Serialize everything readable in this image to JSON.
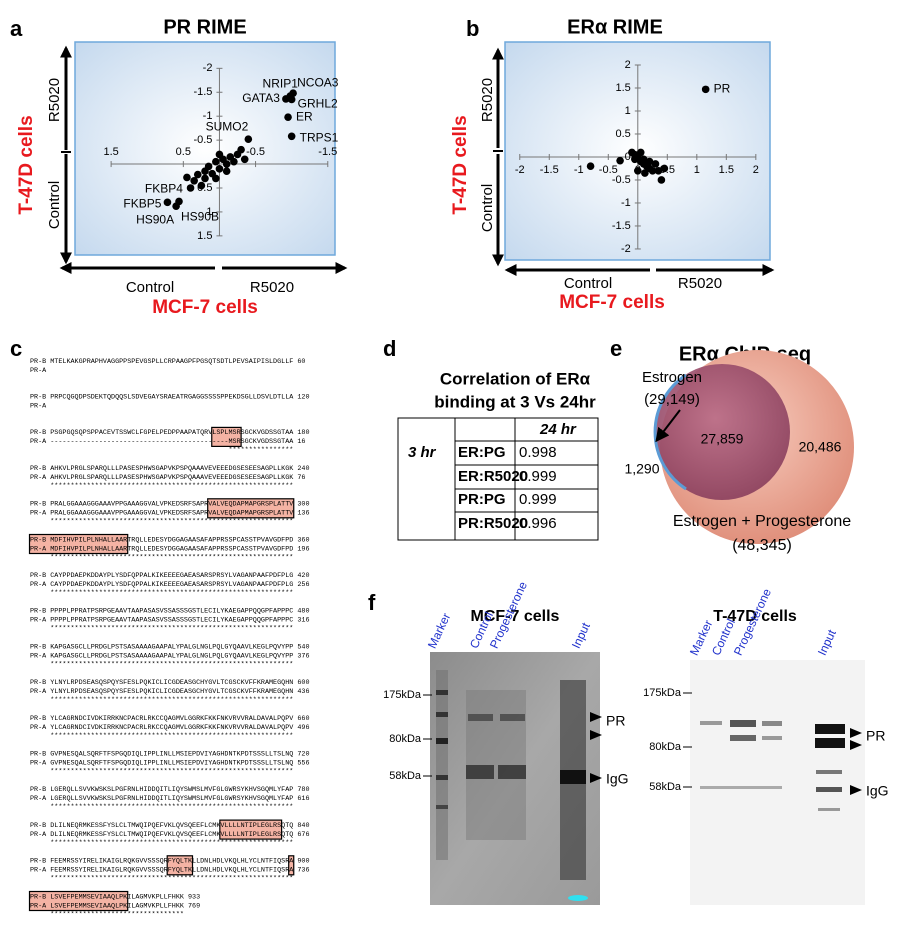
{
  "panel_labels": [
    "a",
    "b",
    "c",
    "d",
    "e",
    "f"
  ],
  "chart_data": [
    {
      "type": "scatter",
      "title": "PR RIME",
      "x_label": "MCF-7 cells",
      "x_side_labels": [
        "Control",
        "R5020"
      ],
      "y_label": "T-47D cells",
      "y_side_labels": [
        "R5020",
        "Control"
      ],
      "xlim": [
        2.0,
        -1.6
      ],
      "ylim": [
        1.9,
        -2.55
      ],
      "xticks": [
        1.5,
        0.5,
        -0.5,
        -1.5
      ],
      "yticks": [
        -2,
        -1.5,
        -1,
        -0.5,
        0.5,
        1,
        1.5
      ],
      "series": [
        {
          "color": "#000000",
          "x": [
            -0.98,
            -1.02,
            -0.92,
            -1.0,
            -0.95,
            -1.0,
            -0.4,
            0.45,
            0.72,
            0.6,
            0.56,
            0.35,
            0.3,
            0.25,
            0.2,
            0.15,
            0.1,
            0.05,
            0,
            -0.05,
            -0.1,
            -0.15,
            -0.2,
            -0.25,
            -0.3,
            -0.1,
            0.05,
            -0.35,
            0.4,
            0.2,
            0
          ],
          "values": [
            -1.42,
            -1.48,
            -1.36,
            -1.35,
            -0.98,
            -0.58,
            -0.52,
            0.28,
            0.8,
            0.88,
            0.78,
            0.35,
            0.22,
            0.45,
            0.15,
            0.05,
            0.2,
            -0.05,
            0.1,
            -0.1,
            0,
            -0.15,
            -0.05,
            -0.2,
            -0.3,
            0.15,
            0.3,
            -0.1,
            0.5,
            0.3,
            -0.2
          ],
          "labels": [
            "NRIP1",
            "NCOA3",
            "GATA3",
            "GRHL2",
            "ER",
            "TRPS1",
            "SUMO2",
            "FKBP4",
            "FKBP5",
            "HS90A",
            "HS90B",
            null,
            null,
            null,
            null,
            null,
            null,
            null,
            null,
            null,
            null,
            null,
            null,
            null,
            null,
            null,
            null,
            null,
            null,
            null,
            null
          ]
        }
      ]
    },
    {
      "type": "scatter",
      "title": "ERα RIME",
      "x_label": "MCF-7 cells",
      "x_side_labels": [
        "Control",
        "R5020"
      ],
      "y_label": "T-47D cells",
      "y_side_labels": [
        "R5020",
        "Control"
      ],
      "xlim": [
        -2.25,
        2.24
      ],
      "ylim": [
        -2.24,
        2.5
      ],
      "xticks": [
        -2,
        -1.5,
        -1,
        -0.5,
        0,
        0.5,
        1,
        1.5,
        2
      ],
      "yticks": [
        2,
        1.5,
        1,
        0.5,
        0,
        -0.5,
        -1,
        -1.5,
        -2
      ],
      "series": [
        {
          "color": "#000000",
          "x": [
            1.15,
            0,
            0.05,
            0.1,
            -0.05,
            0.15,
            0.2,
            0.25,
            0.3,
            0.35,
            0.4,
            -0.1,
            0,
            0.1,
            0.05,
            -0.05,
            0.2,
            0.45,
            -0.3,
            -0.8,
            0.12
          ],
          "values": [
            1.47,
            0,
            -0.1,
            -0.15,
            0.05,
            -0.2,
            -0.25,
            -0.3,
            -0.15,
            -0.3,
            -0.5,
            0.1,
            -0.3,
            -0.05,
            0.1,
            -0.05,
            -0.1,
            -0.25,
            -0.08,
            -0.2,
            -0.35
          ],
          "labels": [
            "PR",
            null,
            null,
            null,
            null,
            null,
            null,
            null,
            null,
            null,
            null,
            null,
            null,
            null,
            null,
            null,
            null,
            null,
            null,
            null,
            null
          ]
        }
      ]
    }
  ],
  "alignment": {
    "blocks": [
      {
        "pr_b": "PR-B MTELKAKGPRAPHVAGGPPSPEVGSPLLCRPAAGPFPGSQTSDTLPEVSAIPISLDGLLF 60",
        "pr_a": "PR-A"
      },
      {
        "pr_b": "PR-B PRPCQGQDPSDEKTQDQQSLSDVEGAYSRAEATRGAGGSSSSPPEKDSGLLDSVLDTLLA 120",
        "pr_a": "PR-A"
      },
      {
        "pr_b": "PR-B PSGPGQSQPSPPACEVTSSWCLFGPELPEDPPAAPATQRVLSPLMSRSGCKVGDSSGTAA 180",
        "pr_a": "PR-A --------------------------------------------MSRSGCKVGDSSGTAA 16",
        "match": "                                            ****************"
      },
      {
        "pr_b": "PR-B AHKVLPRGLSPARQLLLPASESPHWSGAPVKPSPQAAAVEVEEEDGSESEESAGPLLKGK 240",
        "pr_a": "PR-A AHKVLPRGLSPARQLLLPASESPHWSGAPVKPSPQAAAVEVEEEDGSESEESAGPLLKGK 76",
        "match": "************************************************************"
      },
      {
        "pr_b": "PR-B PRALGGAAAGGGAAAVPPGAAAGGVALVPKEDSRFSAPRVALVEQDAPMAPGRSPLATTV 300",
        "pr_a": "PR-A PRALGGAAAGGGAAAVPPGAAAGGVALVPKEDSRFSAPRVALVEQDAPMAPGRSPLATTV 136",
        "match": "************************************************************"
      },
      {
        "pr_b": "PR-B MDFIHVPILPLNHALLAARTRQLLEDESYDGGAGAASAFAPPRSSPCASSTPVAVGDFPD 360",
        "pr_a": "PR-A MDFIHVPILPLNHALLAARTRQLLEDESYDGGAGAASAFAPPRSSPCASSTPVAVGDFPD 196",
        "match": "************************************************************"
      },
      {
        "pr_b": "PR-B CAYPPDAEPKDDAYPLYSDFQPPALKIKEEEEGAEASARSPRSYLVAGANPAAFPDFPLG 420",
        "pr_a": "PR-A CAYPPDAEPKDDAYPLYSDFQPPALKIKEEEEGAEASARSPRSYLVAGANPAAFPDFPLG 256",
        "match": "************************************************************"
      },
      {
        "pr_b": "PR-B PPPPLPPRATPSRPGEAAVTAAPASASVSSASSSGSTLECILYKAEGAPPQQGPFAPPPC 480",
        "pr_a": "PR-A PPPPLPPRATPSRPGEAAVTAAPASASVSSASSSGSTLECILYKAEGAPPQQGPFAPPPC 316",
        "match": "************************************************************"
      },
      {
        "pr_b": "PR-B KAPGASGCLLPRDGLPSTSASAAAAGAAPALYPALGLNGLPQLGYQAAVLKEGLPQVYPP 540",
        "pr_a": "PR-A KAPGASGCLLPRDGLPSTSASAAAAGAAPALYPALGLNGLPQLGYQAAVLKEGLPQVYPP 376",
        "match": "************************************************************"
      },
      {
        "pr_b": "PR-B YLNYLRPDSEASQSPQYSFESLPQKICLICGDEASGCHYGVLTCGSCKVFFKRAMEGQHN 600",
        "pr_a": "PR-A YLNYLRPDSEASQSPQYSFESLPQKICLICGDEASGCHYGVLTCGSCKVFFKRAMEGQHN 436",
        "match": "************************************************************"
      },
      {
        "pr_b": "PR-B YLCAGRNDCIVDKIRRKNCPACRLRKCCQAGMVLGGRKFKKFNKVRVVRALDAVALPQPV 660",
        "pr_a": "PR-A YLCAGRNDCIVDKIRRKNCPACRLRKCCQAGMVLGGRKFKKFNKVRVVRALDAVALPQPV 496",
        "match": "************************************************************"
      },
      {
        "pr_b": "PR-B GVPNESQALSQRFTFSPGQDIQLIPPLINLLMSIEPDVIYAGHDNTKPDTSSSLLTSLNQ 720",
        "pr_a": "PR-A GVPNESQALSQRFTFSPGQDIQLIPPLINLLMSIEPDVIYAGHDNTKPDTSSSLLTSLNQ 556",
        "match": "************************************************************"
      },
      {
        "pr_b": "PR-B LGERQLLSVVKWSKSLPGFRNLHIDDQITLIQYSWMSLMVFGLGWRSYKHVSGQMLYFAP 780",
        "pr_a": "PR-A LGERQLLSVVKWSKSLPGFRNLHIDDQITLIQYSWMSLMVFGLGWRSYKHVSGQMLYFAP 616",
        "match": "************************************************************"
      },
      {
        "pr_b": "PR-B DLILNEQRMKESSFYSLCLTMWQIPQEFVKLQVSQEEFLCMKVLLLLNTIPLEGLRSQTQ 840",
        "pr_a": "PR-A DLILNEQRMKESSFYSLCLTMWQIPQEFVKLQVSQEEFLCMKVLLLLNTIPLEGLRSQTQ 676",
        "match": "************************************************************"
      },
      {
        "pr_b": "PR-B FEEMRSSYIRELIKAIGLRQKGVVSSSQRFYQLTKLLDNLHDLVKQLHLYCLNTFIQSRA 900",
        "pr_a": "PR-A FEEMRSSYIRELIKAIGLRQKGVVSSSQRFYQLTKLLDNLHDLVKQLHLYCLNTFIQSRA 736",
        "match": "************************************************************"
      },
      {
        "pr_b": "PR-B LSVEFPEMMSEVIAAQLPKILAGMVKPLLFHKK 933",
        "pr_a": "PR-A LSVEFPEMMSEVIAAQLPKILAGMVKPLLFHKK 769",
        "match": "*********************************"
      }
    ]
  },
  "correlation_table": {
    "title": [
      "Correlation of ERα",
      "binding at 3 Vs 24hr"
    ],
    "column_header": "24 hr",
    "row_header": "3 hr",
    "rows": [
      [
        "ER:PG",
        0.998
      ],
      [
        "ER:R5020",
        0.999
      ],
      [
        "PR:PG",
        0.999
      ],
      [
        "PR:R5020",
        0.996
      ]
    ]
  },
  "venn": {
    "title": "ERα ChIP-seq",
    "sets": [
      {
        "name": "Estrogen",
        "count": "(29,149)"
      },
      {
        "name": "Estrogen + Progesterone",
        "count": "(48,345)"
      }
    ],
    "estrogen_only": "1,290",
    "both": "27,859",
    "progesterone_only": "20,486"
  },
  "western_blots": [
    {
      "title": "MCF-7 cells",
      "lanes": [
        "Marker",
        "Control",
        "Progesterone",
        "Input"
      ],
      "markers": [
        "175kDa",
        "80kDa",
        "58kDa"
      ],
      "arrows": [
        "PR",
        "IgG"
      ]
    },
    {
      "title": "T-47D cells",
      "lanes": [
        "Marker",
        "Control",
        "Progesterone",
        "Input"
      ],
      "markers": [
        "175kDa",
        "80kDa",
        "58kDa"
      ],
      "arrows": [
        "PR",
        "IgG"
      ]
    }
  ]
}
